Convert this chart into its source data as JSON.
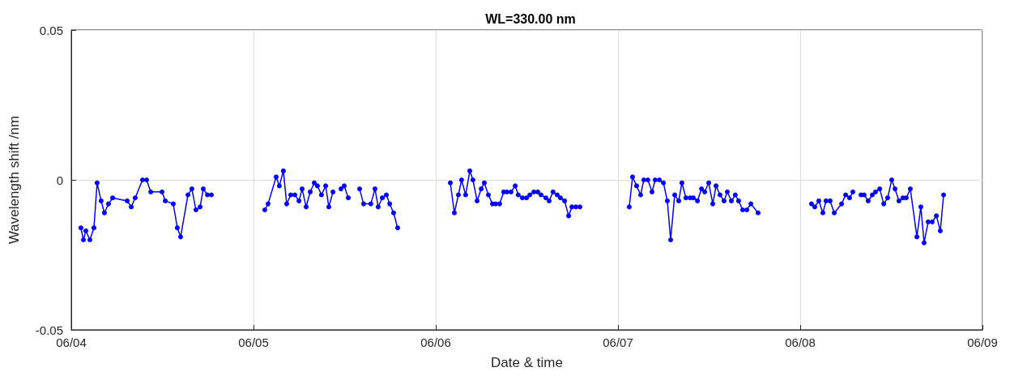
{
  "chart_data": {
    "type": "line",
    "title": "WL=330.00 nm",
    "xlabel": "Date & time",
    "ylabel": "Wavelength shift /nm",
    "xlim": [
      "--06-04",
      "--06-09"
    ],
    "xticks": [
      {
        "value": "--06-04",
        "label": "06/04"
      },
      {
        "value": "--06-05",
        "label": "06/05"
      },
      {
        "value": "--06-06",
        "label": "06/06"
      },
      {
        "value": "--06-07",
        "label": "06/07"
      },
      {
        "value": "--06-08",
        "label": "06/08"
      },
      {
        "value": "--06-09",
        "label": "06/09"
      }
    ],
    "ylim": [
      -0.05,
      0.05
    ],
    "yticks": [
      -0.05,
      0,
      0.05
    ],
    "grid": true,
    "marker": "circle",
    "line_style": "solid",
    "x": [
      "--06-04T01:16",
      "--06-04T01:36",
      "--06-04T01:55",
      "--06-04T02:27",
      "--06-04T02:59",
      "--06-04T03:24",
      "--06-04T03:56",
      "--06-04T04:22",
      "--06-04T04:54",
      "--06-04T05:27",
      "--06-04T07:22",
      "--06-04T07:54",
      "--06-04T08:25",
      "--06-04T09:23",
      "--06-04T09:55",
      "--06-04T10:28",
      "--06-04T11:57",
      "--06-04T12:23",
      "--06-04T13:26",
      "--06-04T13:58",
      "--06-04T14:24",
      "--06-04T15:22",
      "--06-04T15:53",
      "--06-04T16:25",
      "--06-04T16:58",
      "--06-04T17:23",
      "--06-04T17:56",
      "--06-04T18:27",
      "--06-04T21:36",
      "--06-05T01:29",
      "--06-05T01:55",
      "--06-05T02:59",
      "--06-05T03:24",
      "--06-05T03:56",
      "--06-05T04:22",
      "--06-05T04:54",
      "--06-05T05:27",
      "--06-05T05:59",
      "--06-05T06:24",
      "--06-05T06:56",
      "--06-05T07:28",
      "--06-05T08:00",
      "--06-05T08:25",
      "--06-05T08:57",
      "--06-05T09:30",
      "--06-05T09:55",
      "--06-05T10:28",
      "--06-05T11:00",
      "--06-05T11:31",
      "--06-05T11:57",
      "--06-05T12:29",
      "--06-05T13:13",
      "--06-05T13:58",
      "--06-05T14:30",
      "--06-05T15:27",
      "--06-05T16:00",
      "--06-05T16:25",
      "--06-05T16:58",
      "--06-05T17:30",
      "--06-05T17:56",
      "--06-05T18:27",
      "--06-05T18:59",
      "--06-05T21:36",
      "--06-06T01:55",
      "--06-06T02:27",
      "--06-06T02:59",
      "--06-06T03:24",
      "--06-06T03:56",
      "--06-06T04:29",
      "--06-06T04:54",
      "--06-06T05:27",
      "--06-06T05:59",
      "--06-06T06:24",
      "--06-06T06:56",
      "--06-06T07:28",
      "--06-06T07:54",
      "--06-06T08:25",
      "--06-06T08:57",
      "--06-06T09:23",
      "--06-06T09:55",
      "--06-06T10:28",
      "--06-06T10:52",
      "--06-06T11:25",
      "--06-06T11:57",
      "--06-06T12:23",
      "--06-06T12:55",
      "--06-06T13:26",
      "--06-06T13:52",
      "--06-06T14:30",
      "--06-06T14:56",
      "--06-06T15:27",
      "--06-06T16:00",
      "--06-06T16:25",
      "--06-06T16:58",
      "--06-06T17:30",
      "--06-06T17:56",
      "--06-06T18:27",
      "--06-06T18:59",
      "--06-06T21:36",
      "--06-07T01:29",
      "--06-07T01:55",
      "--06-07T02:27",
      "--06-07T02:59",
      "--06-07T03:24",
      "--06-07T03:56",
      "--06-07T04:29",
      "--06-07T04:54",
      "--06-07T05:27",
      "--06-07T05:59",
      "--06-07T06:30",
      "--06-07T06:56",
      "--06-07T07:28",
      "--06-07T08:00",
      "--06-07T08:25",
      "--06-07T08:57",
      "--06-07T09:30",
      "--06-07T09:55",
      "--06-07T10:28",
      "--06-07T11:00",
      "--06-07T11:25",
      "--06-07T11:57",
      "--06-07T12:29",
      "--06-07T12:55",
      "--06-07T13:26",
      "--06-07T13:58",
      "--06-07T14:24",
      "--06-07T14:56",
      "--06-07T15:27",
      "--06-07T15:53",
      "--06-07T16:25",
      "--06-07T16:58",
      "--06-07T17:30",
      "--06-07T18:27",
      "--06-07T21:36",
      "--06-08T01:29",
      "--06-08T01:55",
      "--06-08T02:27",
      "--06-08T02:59",
      "--06-08T03:24",
      "--06-08T03:56",
      "--06-08T04:29",
      "--06-08T05:27",
      "--06-08T05:59",
      "--06-08T06:30",
      "--06-08T06:56",
      "--06-08T07:35",
      "--06-08T08:00",
      "--06-08T08:25",
      "--06-08T08:57",
      "--06-08T09:30",
      "--06-08T09:55",
      "--06-08T10:28",
      "--06-08T11:00",
      "--06-08T11:31",
      "--06-08T12:03",
      "--06-08T12:29",
      "--06-08T13:00",
      "--06-08T13:32",
      "--06-08T13:58",
      "--06-08T14:30",
      "--06-08T15:22",
      "--06-08T15:53",
      "--06-08T16:19",
      "--06-08T16:51",
      "--06-08T17:23",
      "--06-08T17:56",
      "--06-08T18:27",
      "--06-08T18:53"
    ],
    "series": [
      {
        "color": "#0000ff",
        "values": [
          -0.016,
          -0.02,
          -0.017,
          -0.02,
          -0.016,
          -0.001,
          -0.007,
          -0.011,
          -0.008,
          -0.006,
          -0.007,
          -0.009,
          -0.006,
          0,
          0,
          -0.004,
          -0.004,
          -0.007,
          -0.008,
          -0.016,
          -0.019,
          -0.005,
          -0.003,
          -0.01,
          -0.009,
          -0.003,
          -0.005,
          -0.005,
          null,
          -0.01,
          -0.008,
          0.001,
          -0.002,
          0.003,
          -0.008,
          -0.005,
          -0.005,
          -0.007,
          -0.003,
          -0.009,
          -0.004,
          -0.001,
          -0.002,
          -0.005,
          -0.002,
          -0.009,
          -0.004,
          null,
          -0.003,
          -0.002,
          -0.006,
          null,
          -0.003,
          -0.008,
          -0.008,
          -0.003,
          -0.009,
          -0.006,
          -0.005,
          -0.008,
          -0.011,
          -0.016,
          null,
          -0.001,
          -0.011,
          -0.005,
          0,
          -0.005,
          0.003,
          0,
          -0.007,
          -0.003,
          -0.001,
          -0.005,
          -0.008,
          -0.008,
          -0.008,
          -0.004,
          -0.004,
          -0.004,
          -0.002,
          -0.005,
          -0.006,
          -0.006,
          -0.005,
          -0.004,
          -0.004,
          -0.005,
          -0.006,
          -0.007,
          -0.004,
          -0.005,
          -0.006,
          -0.007,
          -0.012,
          -0.009,
          -0.009,
          -0.009,
          null,
          -0.009,
          0.001,
          -0.002,
          -0.005,
          0,
          0,
          -0.004,
          0,
          0,
          -0.001,
          -0.007,
          -0.02,
          -0.005,
          -0.007,
          -0.001,
          -0.006,
          -0.006,
          -0.006,
          -0.007,
          -0.003,
          -0.004,
          -0.001,
          -0.008,
          -0.002,
          -0.005,
          -0.007,
          -0.004,
          -0.007,
          -0.005,
          -0.007,
          -0.01,
          -0.01,
          -0.008,
          -0.011,
          null,
          -0.008,
          -0.009,
          -0.007,
          -0.011,
          -0.007,
          -0.007,
          -0.011,
          -0.008,
          -0.005,
          -0.006,
          -0.004,
          null,
          -0.005,
          -0.005,
          -0.007,
          -0.005,
          -0.004,
          -0.003,
          -0.008,
          -0.006,
          0,
          -0.003,
          -0.007,
          -0.006,
          -0.006,
          -0.003,
          -0.019,
          -0.009,
          -0.021,
          -0.014,
          -0.014,
          -0.012,
          -0.017,
          -0.005
        ]
      }
    ]
  }
}
